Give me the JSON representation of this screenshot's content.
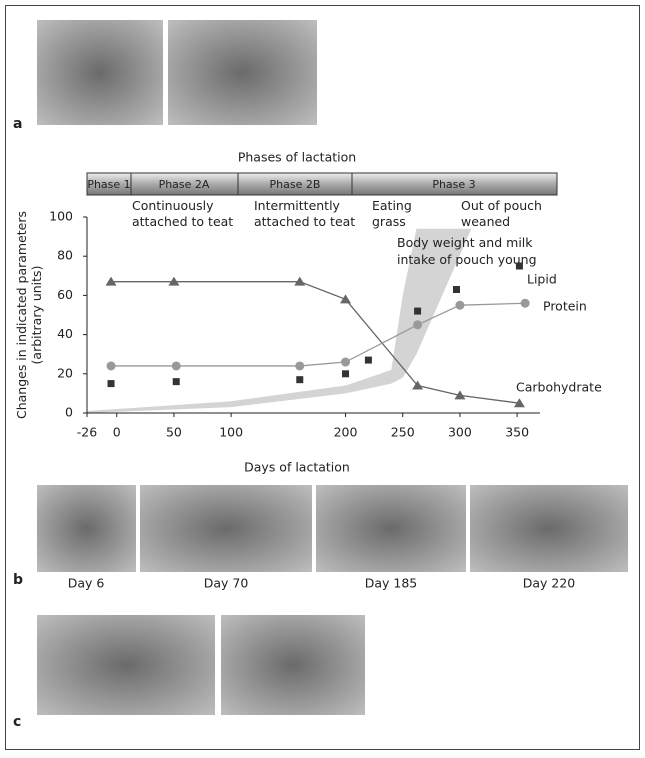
{
  "panel_labels": [
    "a",
    "b",
    "c"
  ],
  "day_captions": [
    "Day 6",
    "Day 70",
    "Day 185",
    "Day 220"
  ],
  "phases_title": "Phases of lactation",
  "phases": [
    "Phase 1",
    "Phase 2A",
    "Phase 2B",
    "Phase 3"
  ],
  "chart_data": {
    "type": "line",
    "ylabel": [
      "Changes in indicated parameters",
      "(arbitrary units)"
    ],
    "xlabel": "Days of lactation",
    "xlim": [
      -26,
      370
    ],
    "xticks": [
      -26,
      0,
      50,
      100,
      200,
      250,
      300,
      350
    ],
    "ylim": [
      0,
      100
    ],
    "yticks": [
      0,
      20,
      40,
      60,
      80,
      100
    ],
    "annotations": [
      [
        "Continuously",
        "attached to teat"
      ],
      [
        "Intermittently",
        "attached to teat"
      ],
      [
        "Eating",
        "grass"
      ],
      [
        "Out of pouch",
        "weaned"
      ]
    ],
    "band": {
      "name": [
        "Body weight and milk",
        "intake of pouch young"
      ],
      "color": "#d4d4d4",
      "x": [
        -26,
        100,
        200,
        240,
        250,
        262,
        310
      ],
      "lower": [
        0,
        3,
        10,
        15,
        18,
        30,
        94
      ],
      "upper": [
        1,
        6,
        14,
        22,
        60,
        94,
        94
      ]
    },
    "series": [
      {
        "name": "Carbohydrate",
        "color": "#666666",
        "marker": "triangle",
        "connected": true,
        "x": [
          -5,
          50,
          160,
          200,
          263,
          300,
          352
        ],
        "values": [
          67,
          67,
          67,
          58,
          14,
          9,
          5
        ]
      },
      {
        "name": "Protein",
        "color": "#999999",
        "marker": "circle",
        "connected": true,
        "x": [
          -5,
          52,
          160,
          200,
          263,
          300,
          357
        ],
        "values": [
          24,
          24,
          24,
          26,
          45,
          55,
          56
        ]
      },
      {
        "name": "Lipid",
        "color": "#333333",
        "marker": "square",
        "connected": false,
        "x": [
          -5,
          52,
          160,
          200,
          220,
          263,
          297,
          352
        ],
        "values": [
          15,
          16,
          17,
          20,
          27,
          52,
          63,
          75
        ]
      }
    ]
  }
}
